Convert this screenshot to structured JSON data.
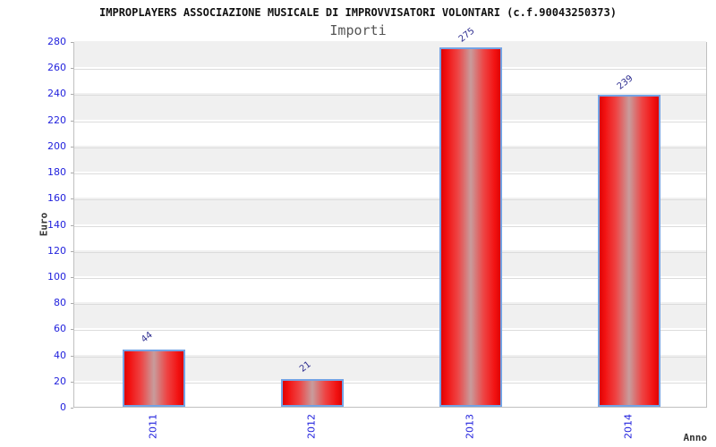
{
  "header": {
    "title": "IMPROPLAYERS ASSOCIAZIONE MUSICALE DI IMPROVVISATORI VOLONTARI (c.f.90043250373)",
    "subtitle": "Importi"
  },
  "chart_data": {
    "type": "bar",
    "title": "Importi",
    "categories": [
      "2011",
      "2012",
      "2013",
      "2014"
    ],
    "values": [
      44,
      21,
      275,
      239
    ],
    "xlabel": "Anno",
    "ylabel": "Euro",
    "ylim": [
      0,
      280
    ],
    "ytick_step": 20,
    "yticks": [
      0,
      20,
      40,
      60,
      80,
      100,
      120,
      140,
      160,
      180,
      200,
      220,
      240,
      260,
      280
    ],
    "grid": "alternating horizontal bands, gray on odd 20-unit bands",
    "legend": "none",
    "colors": {
      "bar_red": "#f21111",
      "bar_red_edge": "#dd0404",
      "bar_highlight": "#c89c9c",
      "bar_border": "#74a3e4",
      "tick_label_blue": "#2222dd",
      "value_label_blue": "#2e2e90",
      "band_gray": "#f0f0f0",
      "gridline_gray": "#dcdcdc",
      "plot_border_gray": "#c0c0c0",
      "title_color": "#111111",
      "subtitle_color": "#555555",
      "axis_title_color": "#333333"
    }
  }
}
